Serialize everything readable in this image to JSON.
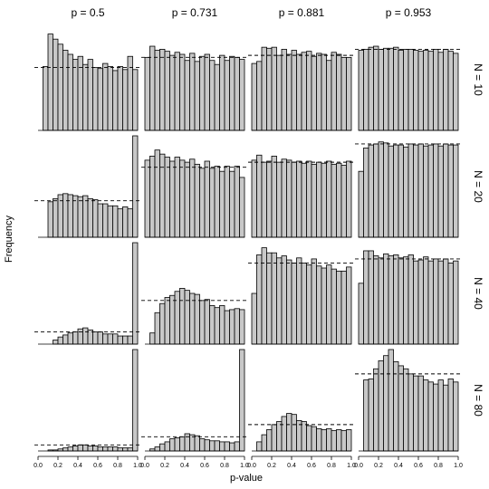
{
  "chart_data": {
    "type": "histogram-grid",
    "title": "",
    "xlabel": "p-value",
    "ylabel": "Frequency",
    "x_ticks": [
      "0.0",
      "0.2",
      "0.4",
      "0.6",
      "0.8",
      "1.0"
    ],
    "xlim": [
      0,
      1
    ],
    "bin_width": 0.05,
    "bar_color": "#c8c8c8",
    "bar_edge_color": "#000000",
    "reference_line_style": "dashed",
    "grid": false,
    "columns": [
      "p = 0.5",
      "p = 0.731",
      "p = 0.881",
      "p = 0.953"
    ],
    "rows": [
      "N = 10",
      "N = 20",
      "N = 40",
      "N = 80"
    ],
    "note": "",
    "panels": [
      [
        {
          "values": [
            0.0,
            0.63,
            0.95,
            0.9,
            0.85,
            0.79,
            0.75,
            0.7,
            0.73,
            0.65,
            0.7,
            0.62,
            0.61,
            0.66,
            0.63,
            0.59,
            0.63,
            0.6,
            0.73,
            0.6
          ],
          "ref": 0.62
        },
        {
          "values": [
            0.72,
            0.83,
            0.79,
            0.8,
            0.78,
            0.74,
            0.77,
            0.75,
            0.69,
            0.76,
            0.68,
            0.73,
            0.75,
            0.69,
            0.65,
            0.74,
            0.69,
            0.73,
            0.72,
            0.7
          ],
          "ref": 0.72
        },
        {
          "values": [
            0.66,
            0.68,
            0.82,
            0.81,
            0.82,
            0.74,
            0.8,
            0.75,
            0.79,
            0.75,
            0.77,
            0.78,
            0.73,
            0.76,
            0.75,
            0.69,
            0.77,
            0.75,
            0.72,
            0.72
          ],
          "ref": 0.74
        },
        {
          "values": [
            0.79,
            0.8,
            0.82,
            0.83,
            0.8,
            0.81,
            0.81,
            0.82,
            0.79,
            0.8,
            0.8,
            0.79,
            0.78,
            0.79,
            0.78,
            0.8,
            0.77,
            0.8,
            0.78,
            0.76
          ],
          "ref": 0.8
        }
      ],
      [
        {
          "values": [
            0.0,
            0.0,
            0.35,
            0.38,
            0.42,
            0.43,
            0.42,
            0.41,
            0.4,
            0.41,
            0.38,
            0.37,
            0.33,
            0.33,
            0.31,
            0.31,
            0.28,
            0.3,
            0.28,
            1.0
          ],
          "ref": 0.36
        },
        {
          "values": [
            0.76,
            0.8,
            0.86,
            0.82,
            0.79,
            0.75,
            0.79,
            0.76,
            0.74,
            0.77,
            0.72,
            0.68,
            0.75,
            0.68,
            0.7,
            0.65,
            0.7,
            0.65,
            0.7,
            0.59
          ],
          "ref": 0.69
        },
        {
          "values": [
            0.76,
            0.81,
            0.74,
            0.75,
            0.8,
            0.74,
            0.77,
            0.76,
            0.74,
            0.75,
            0.73,
            0.75,
            0.72,
            0.74,
            0.73,
            0.75,
            0.72,
            0.73,
            0.71,
            0.75
          ],
          "ref": 0.74
        },
        {
          "values": [
            0.65,
            0.88,
            0.91,
            0.92,
            0.94,
            0.93,
            0.9,
            0.91,
            0.91,
            0.89,
            0.92,
            0.91,
            0.92,
            0.9,
            0.91,
            0.92,
            0.9,
            0.92,
            0.91,
            0.91
          ],
          "ref": 0.92
        }
      ],
      [
        {
          "values": [
            0.0,
            0.0,
            0.0,
            0.04,
            0.07,
            0.09,
            0.11,
            0.12,
            0.15,
            0.16,
            0.14,
            0.12,
            0.12,
            0.1,
            0.1,
            0.1,
            0.08,
            0.08,
            0.08,
            1.0
          ],
          "ref": 0.12
        },
        {
          "values": [
            0.0,
            0.11,
            0.31,
            0.4,
            0.46,
            0.48,
            0.52,
            0.55,
            0.53,
            0.5,
            0.49,
            0.43,
            0.44,
            0.38,
            0.36,
            0.38,
            0.33,
            0.34,
            0.35,
            0.34
          ],
          "ref": 0.43
        },
        {
          "values": [
            0.5,
            0.88,
            0.95,
            0.9,
            0.9,
            0.85,
            0.87,
            0.83,
            0.8,
            0.85,
            0.8,
            0.78,
            0.84,
            0.77,
            0.75,
            0.78,
            0.74,
            0.72,
            0.72,
            0.76
          ],
          "ref": 0.8
        },
        {
          "values": [
            0.6,
            0.92,
            0.92,
            0.87,
            0.85,
            0.89,
            0.87,
            0.88,
            0.85,
            0.86,
            0.88,
            0.82,
            0.83,
            0.86,
            0.82,
            0.84,
            0.82,
            0.84,
            0.8,
            0.82
          ],
          "ref": 0.84
        }
      ],
      [
        {
          "values": [
            0.0,
            0.0,
            0.01,
            0.01,
            0.02,
            0.03,
            0.04,
            0.05,
            0.06,
            0.06,
            0.05,
            0.05,
            0.04,
            0.04,
            0.04,
            0.04,
            0.03,
            0.03,
            0.03,
            1.0
          ],
          "ref": 0.06
        },
        {
          "values": [
            0.0,
            0.02,
            0.04,
            0.07,
            0.09,
            0.12,
            0.13,
            0.14,
            0.17,
            0.16,
            0.15,
            0.12,
            0.11,
            0.1,
            0.1,
            0.09,
            0.09,
            0.08,
            0.09,
            1.0
          ],
          "ref": 0.14
        },
        {
          "values": [
            0.0,
            0.09,
            0.16,
            0.21,
            0.26,
            0.29,
            0.34,
            0.37,
            0.36,
            0.3,
            0.29,
            0.25,
            0.24,
            0.22,
            0.21,
            0.22,
            0.2,
            0.21,
            0.2,
            0.21
          ],
          "ref": 0.26
        },
        {
          "values": [
            0.0,
            0.7,
            0.71,
            0.81,
            0.89,
            0.94,
            1.0,
            0.88,
            0.84,
            0.81,
            0.76,
            0.74,
            0.74,
            0.7,
            0.68,
            0.66,
            0.7,
            0.65,
            0.71,
            0.68
          ],
          "ref": 0.76
        }
      ]
    ]
  }
}
